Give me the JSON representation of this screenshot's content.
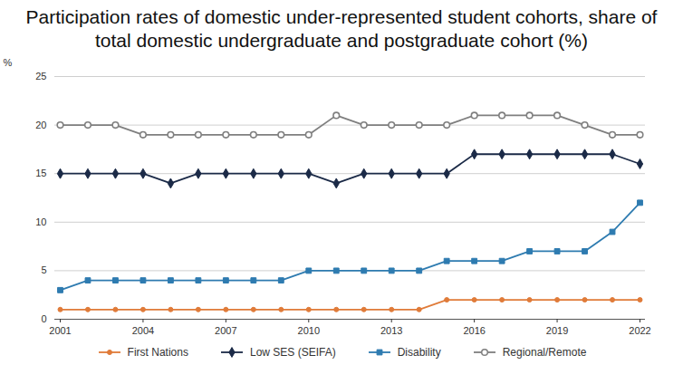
{
  "chart_data": {
    "type": "line",
    "title": "Participation rates of domestic under-represented student cohorts, share of total domestic undergraduate and postgraduate cohort (%)",
    "ylabel": "%",
    "x": [
      2001,
      2002,
      2003,
      2004,
      2005,
      2006,
      2007,
      2008,
      2009,
      2010,
      2011,
      2012,
      2013,
      2014,
      2015,
      2016,
      2017,
      2018,
      2019,
      2020,
      2021,
      2022
    ],
    "xlim": [
      2001,
      2022
    ],
    "xticks": [
      2001,
      2004,
      2007,
      2010,
      2013,
      2016,
      2019,
      2022
    ],
    "ylim": [
      0,
      25
    ],
    "yticks": [
      0,
      5,
      10,
      15,
      20,
      25
    ],
    "grid": true,
    "legend": "bottom",
    "series": [
      {
        "name": "First Nations",
        "color": "#e07b39",
        "marker": "circle",
        "values": [
          1,
          1,
          1,
          1,
          1,
          1,
          1,
          1,
          1,
          1,
          1,
          1,
          1,
          1,
          2,
          2,
          2,
          2,
          2,
          2,
          2,
          2
        ]
      },
      {
        "name": "Low SES (SEIFA)",
        "color": "#1b2a47",
        "marker": "diamond",
        "values": [
          15,
          15,
          15,
          15,
          14,
          15,
          15,
          15,
          15,
          15,
          14,
          15,
          15,
          15,
          15,
          17,
          17,
          17,
          17,
          17,
          17,
          16
        ]
      },
      {
        "name": "Disability",
        "color": "#2e7bb0",
        "marker": "square",
        "values": [
          3,
          4,
          4,
          4,
          4,
          4,
          4,
          4,
          4,
          5,
          5,
          5,
          5,
          5,
          6,
          6,
          6,
          7,
          7,
          7,
          9,
          12
        ]
      },
      {
        "name": "Regional/Remote",
        "color": "#7f7f7f",
        "marker": "open_circle",
        "values": [
          20,
          20,
          20,
          19,
          19,
          19,
          19,
          19,
          19,
          19,
          21,
          20,
          20,
          20,
          20,
          21,
          21,
          21,
          21,
          20,
          19,
          19
        ]
      }
    ]
  }
}
